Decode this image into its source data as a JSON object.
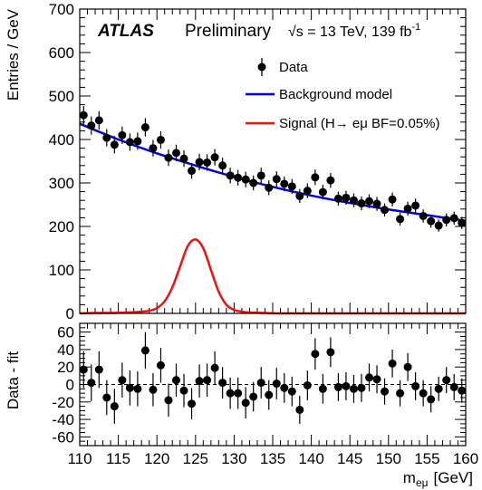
{
  "chart_data": [
    {
      "type": "scatter",
      "panel": "main",
      "ylabel": "Entries / GeV",
      "ylim": [
        0,
        700
      ],
      "xlim": [
        110,
        160
      ],
      "yticks": [
        0,
        100,
        200,
        300,
        400,
        500,
        600,
        700
      ],
      "annotations": {
        "experiment": "ATLAS",
        "status": "Preliminary",
        "energy": "√s = 13 TeV, 139 fb",
        "energy_sup": "-1"
      },
      "legend": {
        "placement": "top-right",
        "entries": [
          {
            "label": "Data",
            "style": "marker",
            "color": "#000000"
          },
          {
            "label": "Background model",
            "style": "line",
            "color": "#0000dd"
          },
          {
            "label": "Signal (H→ eμ BF=0.05%)",
            "style": "line",
            "color": "#ee1111"
          }
        ]
      },
      "series": [
        {
          "name": "Data",
          "x": [
            110.5,
            111.5,
            112.5,
            113.5,
            114.5,
            115.5,
            116.5,
            117.5,
            118.5,
            119.5,
            120.5,
            121.5,
            122.5,
            123.5,
            124.5,
            125.5,
            126.5,
            127.5,
            128.5,
            129.5,
            130.5,
            131.5,
            132.5,
            133.5,
            134.5,
            135.5,
            136.5,
            137.5,
            138.5,
            139.5,
            140.5,
            141.5,
            142.5,
            143.5,
            144.5,
            145.5,
            146.5,
            147.5,
            148.5,
            149.5,
            150.5,
            151.5,
            152.5,
            153.5,
            154.5,
            155.5,
            156.5,
            157.5,
            158.5,
            159.5
          ],
          "y": [
            456,
            432,
            444,
            404,
            388,
            410,
            394,
            396,
            428,
            380,
            399,
            358,
            369,
            356,
            328,
            348,
            347,
            359,
            340,
            317,
            312,
            308,
            300,
            317,
            289,
            309,
            298,
            292,
            270,
            282,
            313,
            279,
            306,
            264,
            266,
            260,
            253,
            258,
            252,
            238,
            262,
            217,
            241,
            248,
            224,
            212,
            202,
            215,
            219,
            208
          ],
          "yerr": [
            21,
            21,
            21,
            20,
            20,
            20,
            20,
            20,
            21,
            19,
            20,
            19,
            19,
            19,
            18,
            19,
            19,
            19,
            18,
            18,
            18,
            18,
            17,
            18,
            17,
            18,
            17,
            17,
            16,
            17,
            18,
            17,
            17,
            16,
            16,
            16,
            16,
            16,
            16,
            15,
            16,
            15,
            16,
            16,
            15,
            15,
            14,
            15,
            15,
            14
          ]
        },
        {
          "name": "Background model",
          "x": [
            110,
            115,
            120,
            125,
            130,
            135,
            140,
            145,
            150,
            155,
            160
          ],
          "y": [
            436,
            400,
            368,
            340,
            314,
            291,
            271,
            254,
            239,
            226,
            213
          ]
        },
        {
          "name": "Signal (H→ eμ BF=0.05%)",
          "x": [
            110,
            112,
            114,
            116,
            118,
            119,
            120,
            121,
            122,
            123,
            124,
            125,
            126,
            127,
            128,
            129,
            130,
            131,
            132,
            134,
            136,
            140,
            160
          ],
          "y": [
            0,
            1,
            1,
            2,
            4,
            6,
            12,
            28,
            60,
            108,
            155,
            170,
            150,
            100,
            50,
            20,
            8,
            4,
            2,
            1,
            0,
            0,
            0
          ]
        }
      ]
    },
    {
      "type": "scatter",
      "panel": "ratio",
      "xlabel": "m",
      "xlabel_sub": "eμ",
      "xlabel_unit": "[GeV]",
      "ylabel": "Data - fit",
      "ylim": [
        -70,
        70
      ],
      "xlim": [
        110,
        160
      ],
      "yticks": [
        -60,
        -40,
        -20,
        0,
        20,
        40,
        60
      ],
      "xticks": [
        110,
        115,
        120,
        125,
        130,
        135,
        140,
        145,
        150,
        155,
        160
      ],
      "reference_line": 0,
      "series": [
        {
          "name": "Data - fit",
          "x": [
            110.5,
            111.5,
            112.5,
            113.5,
            114.5,
            115.5,
            116.5,
            117.5,
            118.5,
            119.5,
            120.5,
            121.5,
            122.5,
            123.5,
            124.5,
            125.5,
            126.5,
            127.5,
            128.5,
            129.5,
            130.5,
            131.5,
            132.5,
            133.5,
            134.5,
            135.5,
            136.5,
            137.5,
            138.5,
            139.5,
            140.5,
            141.5,
            142.5,
            143.5,
            144.5,
            145.5,
            146.5,
            147.5,
            148.5,
            149.5,
            150.5,
            151.5,
            152.5,
            153.5,
            154.5,
            155.5,
            156.5,
            157.5,
            158.5,
            159.5
          ],
          "y": [
            17,
            2,
            17,
            -15,
            -25,
            5,
            -4,
            -5,
            39,
            -6,
            22,
            -18,
            5,
            -7,
            -22,
            4,
            5,
            19,
            2,
            -10,
            -10,
            -21,
            -14,
            2,
            -12,
            1,
            -4,
            -8,
            -29,
            -1,
            35,
            -5,
            37,
            -3,
            -2,
            -5,
            -4,
            8,
            6,
            -8,
            24,
            -10,
            20,
            -2,
            -10,
            -17,
            -5,
            5,
            -3,
            -7
          ],
          "yerr": [
            21,
            21,
            21,
            20,
            20,
            20,
            20,
            20,
            21,
            19,
            20,
            19,
            19,
            19,
            18,
            19,
            19,
            19,
            18,
            18,
            18,
            18,
            17,
            18,
            17,
            18,
            17,
            17,
            16,
            17,
            18,
            17,
            17,
            16,
            16,
            16,
            16,
            16,
            16,
            15,
            16,
            15,
            16,
            16,
            15,
            15,
            14,
            15,
            15,
            14
          ]
        }
      ]
    }
  ]
}
